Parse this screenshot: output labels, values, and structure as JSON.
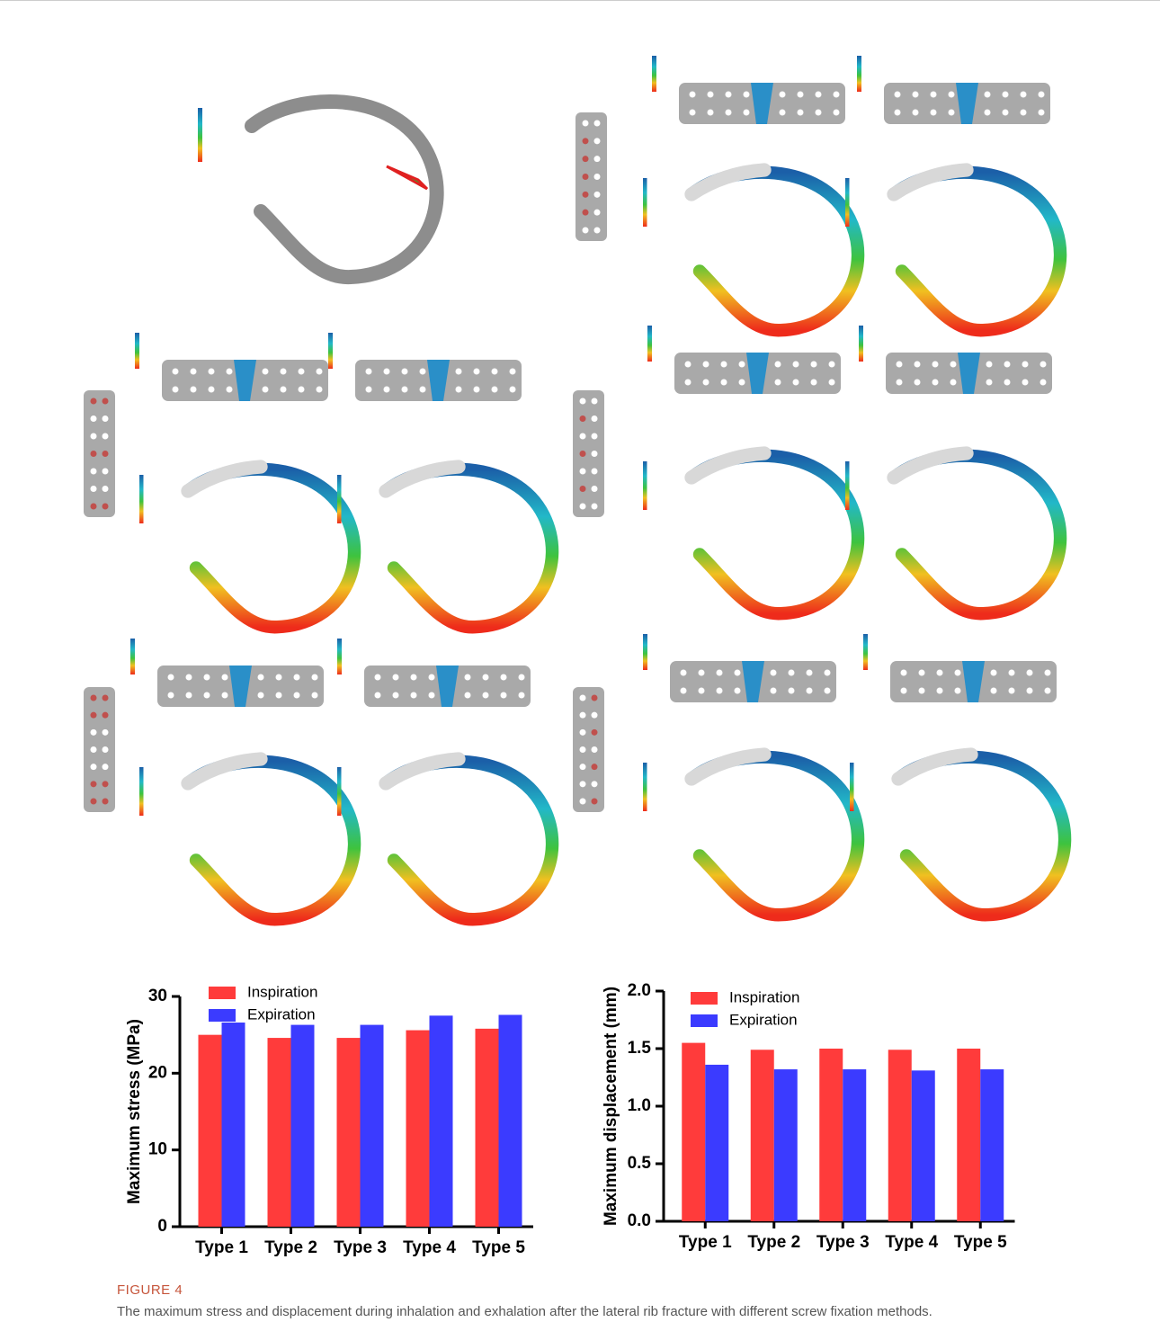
{
  "chart_data": [
    {
      "type": "bar",
      "ylabel": "Maximum stress (MPa)",
      "categories": [
        "Type 1",
        "Type 2",
        "Type 3",
        "Type 4",
        "Type 5"
      ],
      "series": [
        {
          "name": "Inspiration",
          "color": "#ff3b3b",
          "values": [
            25.0,
            24.6,
            24.6,
            25.6,
            25.8
          ]
        },
        {
          "name": "Expiration",
          "color": "#3b3bff",
          "values": [
            26.6,
            26.3,
            26.3,
            27.5,
            27.6
          ]
        }
      ],
      "ylim": [
        0,
        30
      ],
      "yticks": [
        0,
        10,
        20,
        30
      ],
      "legend": "upper left"
    },
    {
      "type": "bar",
      "ylabel": "Maximum displacement (mm)",
      "categories": [
        "Type 1",
        "Type 2",
        "Type 3",
        "Type 4",
        "Type 5"
      ],
      "series": [
        {
          "name": "Inspiration",
          "color": "#ff3b3b",
          "values": [
            1.55,
            1.49,
            1.5,
            1.49,
            1.5
          ]
        },
        {
          "name": "Expiration",
          "color": "#3b3bff",
          "values": [
            1.36,
            1.32,
            1.32,
            1.31,
            1.32
          ]
        }
      ],
      "ylim": [
        0,
        2
      ],
      "yticks": [
        {
          "value": 0,
          "label": "0.0"
        },
        {
          "value": 0.5,
          "label": "0.5"
        },
        {
          "value": 1,
          "label": "1.0"
        },
        {
          "value": 1.5,
          "label": "1.5"
        },
        {
          "value": 2,
          "label": "2.0"
        }
      ],
      "legend": "upper left"
    }
  ],
  "caption": {
    "label": "FIGURE 4",
    "text": "The maximum stress and displacement during inhalation and exhalation after the lateral rib fracture with different screw fixation methods."
  }
}
